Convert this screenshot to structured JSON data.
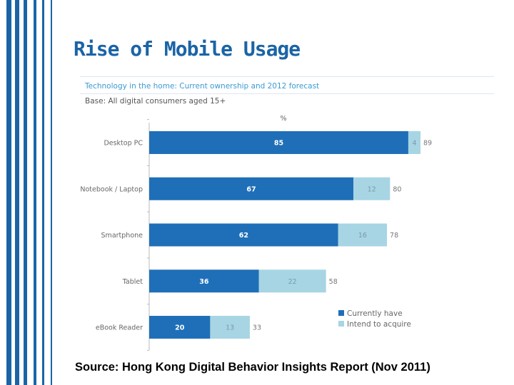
{
  "slide": {
    "title": "Rise of Mobile Usage",
    "source": "Source: Hong Kong Digital Behavior Insights Report (Nov 2011)"
  },
  "colors": {
    "accent": "#1a64a6",
    "current": "#1f6fb8",
    "intend": "#a7d5e3"
  },
  "chart_data": {
    "type": "bar",
    "orientation": "horizontal",
    "stacked": true,
    "title": "Technology in the home: Current ownership and 2012 forecast",
    "subtitle": "Base: All digital consumers aged 15+",
    "unit": "%",
    "categories": [
      "Desktop PC",
      "Notebook / Laptop",
      "Smartphone",
      "Tablet",
      "eBook Reader"
    ],
    "series": [
      {
        "name": "Currently have",
        "values": [
          85,
          67,
          62,
          36,
          20
        ]
      },
      {
        "name": "Intend to acquire",
        "values": [
          4,
          12,
          16,
          22,
          13
        ]
      }
    ],
    "totals": [
      89,
      80,
      78,
      58,
      33
    ],
    "legend": "bottom-right",
    "grid": false
  }
}
